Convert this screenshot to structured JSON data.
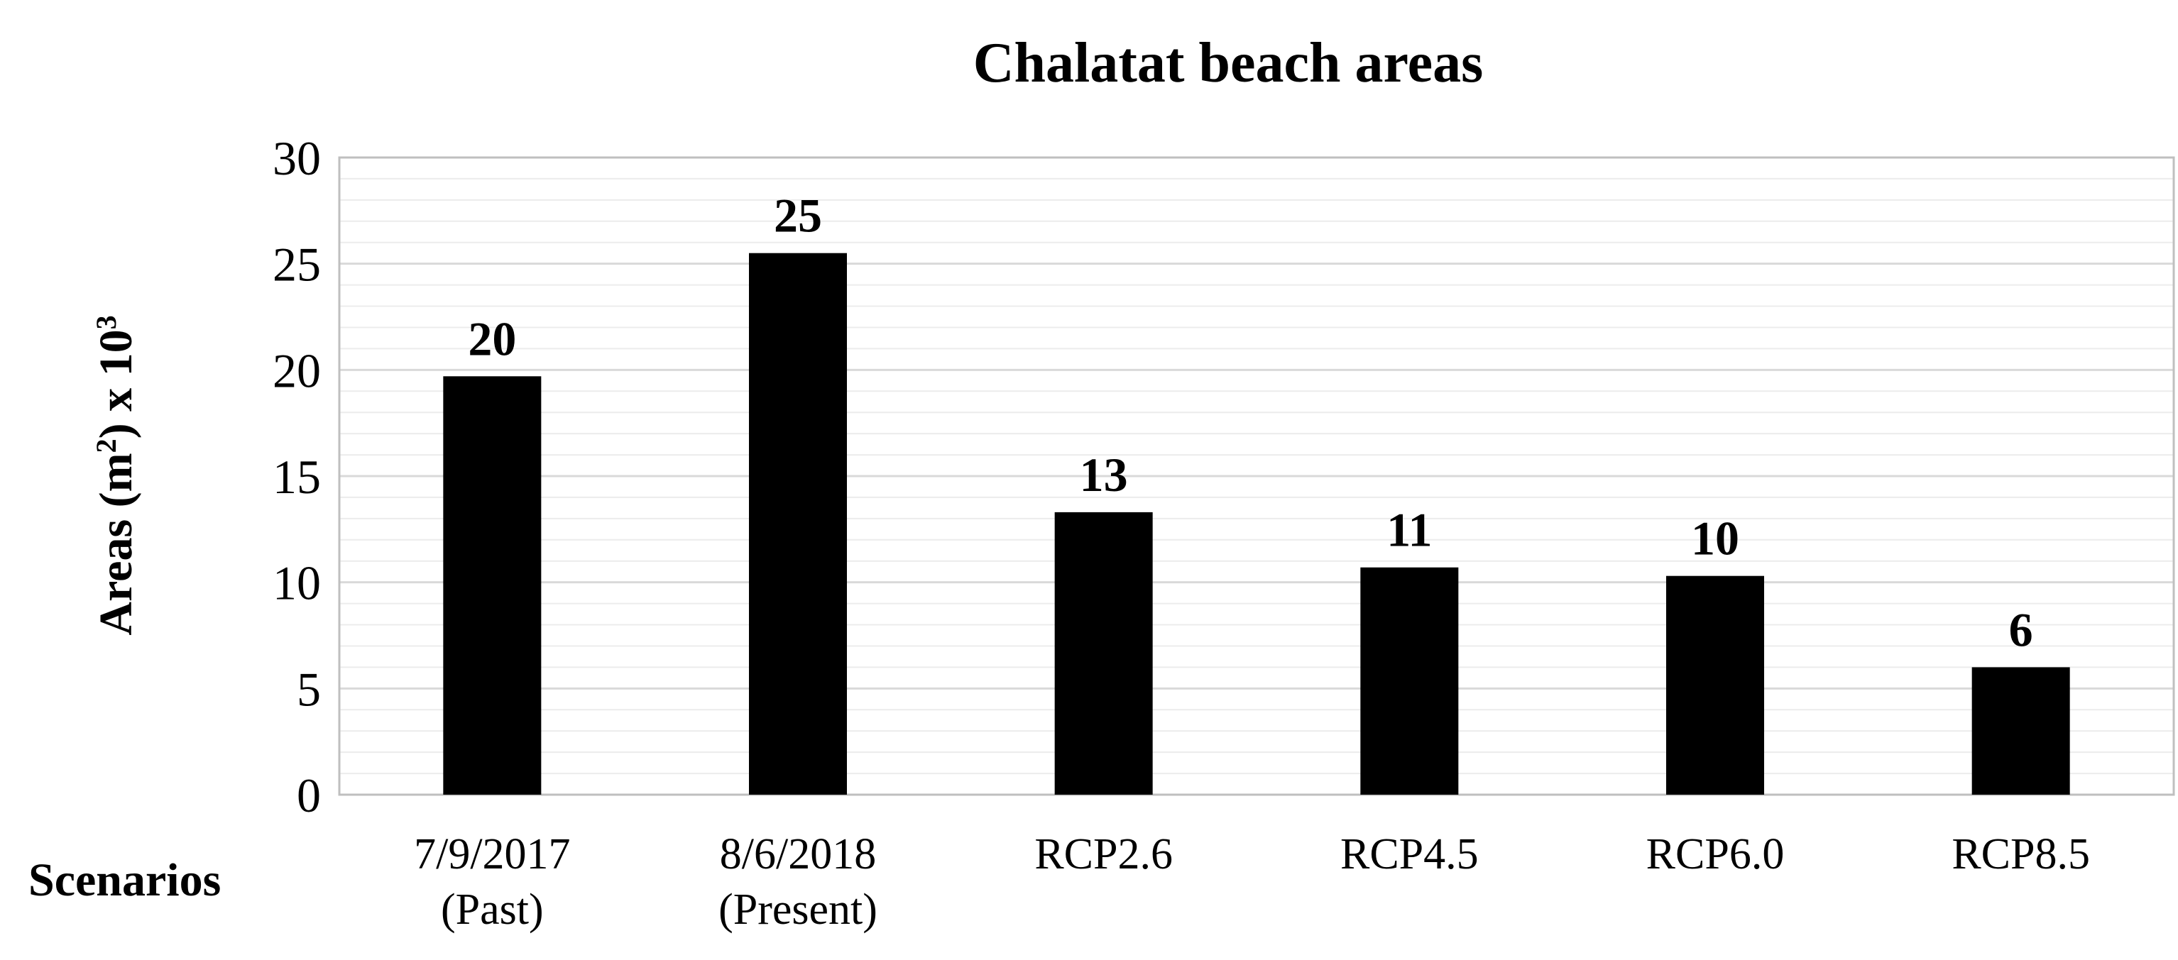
{
  "chart_data": {
    "type": "bar",
    "title": "Chalatat beach areas",
    "xlabel": "Scenarios",
    "ylabel": {
      "base": "Areas (m",
      "sup1": "2",
      "mid": ") x 10",
      "sup2": "3"
    },
    "categories": [
      [
        "7/9/2017",
        "(Past)"
      ],
      [
        "8/6/2018",
        "(Present)"
      ],
      [
        "RCP2.6"
      ],
      [
        "RCP4.5"
      ],
      [
        "RCP6.0"
      ],
      [
        "RCP8.5"
      ]
    ],
    "values": [
      19.7,
      25.5,
      13.3,
      10.7,
      10.3,
      6.0
    ],
    "data_labels": [
      "20",
      "25",
      "13",
      "11",
      "10",
      "6"
    ],
    "ylim": [
      0,
      30
    ],
    "y_ticks": [
      0,
      5,
      10,
      15,
      20,
      25,
      30
    ],
    "grid": true,
    "minor_grid_step": 1,
    "bar_color": "#000000",
    "grid_color": "#d9d9d9",
    "minor_grid_color": "#ececec",
    "text_color": "#000000"
  }
}
